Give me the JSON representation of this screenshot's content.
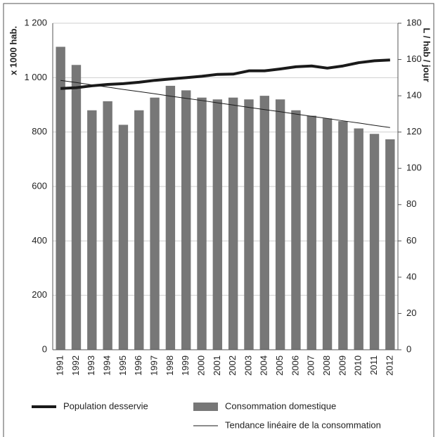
{
  "chart_data": {
    "type": "bar",
    "ylabel": "x 1000 hab.",
    "y2label": "L / hab / jour",
    "categories": [
      "1991",
      "1992",
      "1993",
      "1994",
      "1995",
      "1996",
      "1997",
      "1998",
      "1999",
      "2000",
      "2001",
      "2002",
      "2003",
      "2004",
      "2005",
      "2006",
      "2007",
      "2008",
      "2009",
      "2010",
      "2011",
      "2012"
    ],
    "series": [
      {
        "name": "Population desservie",
        "type": "line",
        "axis": "y",
        "color": "#1a1a1a",
        "line_width": 4,
        "values": [
          960,
          963,
          970,
          975,
          978,
          983,
          990,
          995,
          1000,
          1005,
          1012,
          1013,
          1025,
          1025,
          1032,
          1040,
          1043,
          1035,
          1043,
          1055,
          1062,
          1065
        ]
      },
      {
        "name": "Consommation domestique",
        "type": "bar",
        "axis": "y2",
        "color": "#777777",
        "values": [
          167,
          157,
          132,
          137,
          124,
          132,
          139,
          145.5,
          143,
          139,
          138,
          139,
          138,
          140,
          138,
          132,
          129,
          127.5,
          126,
          122,
          119,
          116
        ]
      },
      {
        "name": "Tendance linéaire de la consommation",
        "type": "line",
        "axis": "y2",
        "color": "#1a1a1a",
        "line_width": 1,
        "values": [
          148.5,
          147.3,
          146.0,
          144.8,
          143.5,
          142.3,
          141.1,
          139.8,
          138.6,
          137.4,
          136.1,
          134.9,
          133.6,
          132.4,
          131.2,
          129.9,
          128.7,
          127.5,
          126.2,
          125.0,
          123.7,
          122.5
        ]
      }
    ],
    "ylim": [
      0,
      1200
    ],
    "yticks": [
      0,
      200,
      400,
      600,
      800,
      {
        "value": 1000,
        "label": "1 000"
      },
      {
        "value": 1200,
        "label": "1 200"
      }
    ],
    "y2lim": [
      0,
      180
    ],
    "y2ticks": [
      0,
      20,
      40,
      60,
      80,
      100,
      120,
      140,
      160,
      180
    ],
    "grid": true
  }
}
